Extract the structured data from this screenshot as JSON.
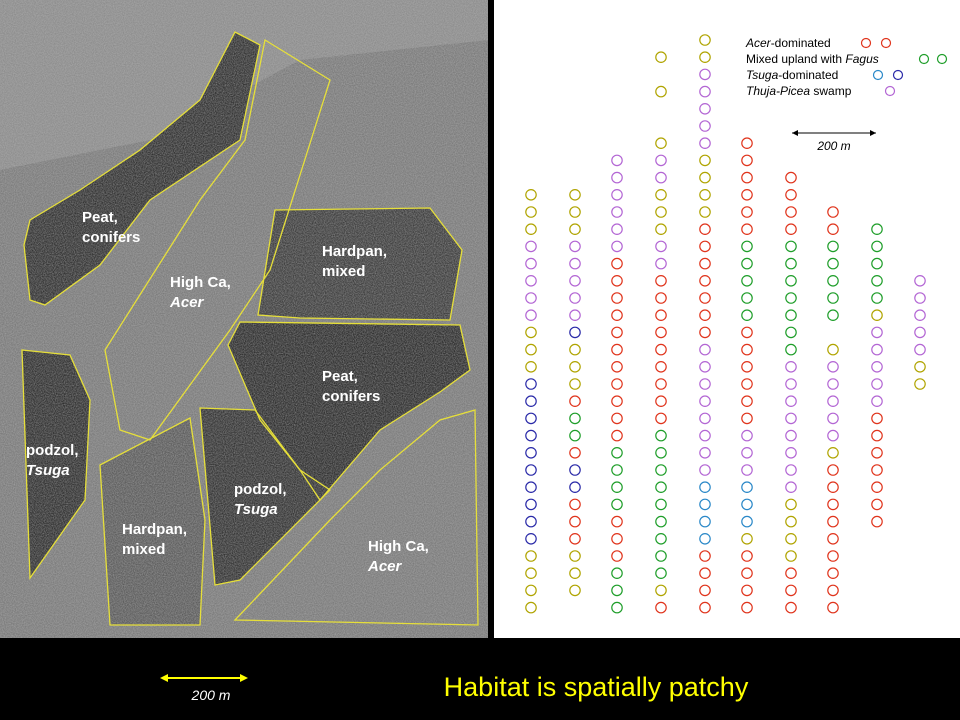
{
  "photo_labels": [
    {
      "lines": [
        "Peat,",
        "conifers"
      ]
    },
    {
      "lines": [
        "High Ca,",
        "Acer"
      ]
    },
    {
      "lines": [
        "Hardpan,",
        "mixed"
      ]
    },
    {
      "lines": [
        "Peat,",
        "conifers"
      ]
    },
    {
      "lines": [
        "podzol,",
        "Tsuga"
      ]
    },
    {
      "lines": [
        "podzol,",
        "Tsuga"
      ]
    },
    {
      "lines": [
        "Hardpan,",
        "mixed"
      ]
    },
    {
      "lines": [
        "High Ca,",
        "Acer"
      ]
    }
  ],
  "legend": [
    {
      "italic": "Acer",
      "text": "-dominated"
    },
    {
      "text": "Mixed upland with ",
      "italic": "Fagus"
    },
    {
      "italic": "Tsuga",
      "text": "-dominated"
    },
    {
      "italic": "Thuja-Picea",
      "text": " swamp"
    }
  ],
  "map_scale": "200 m",
  "photo_scale": "200 m",
  "title": "Habitat is spatially patchy"
}
